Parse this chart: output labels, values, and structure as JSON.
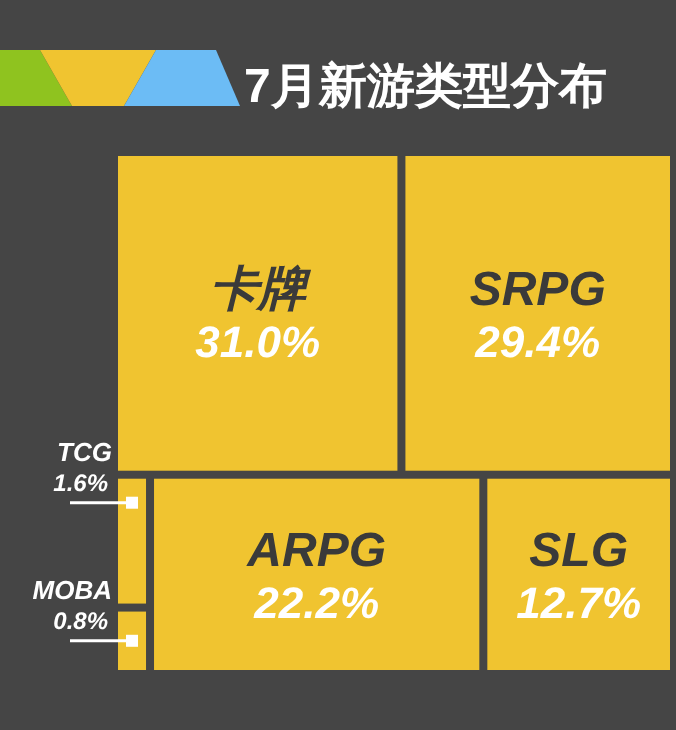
{
  "chart_data": {
    "type": "other",
    "title": "7月新游类型分布",
    "categories": [
      "卡牌",
      "SRPG",
      "ARPG",
      "SLG",
      "TCG",
      "MOBA"
    ],
    "values": [
      31.0,
      29.4,
      22.2,
      12.7,
      1.6,
      0.8
    ],
    "value_labels": [
      "31.0%",
      "29.4%",
      "22.2%",
      "12.7%",
      "1.6%",
      "0.8%"
    ],
    "color": "#f0c430"
  }
}
